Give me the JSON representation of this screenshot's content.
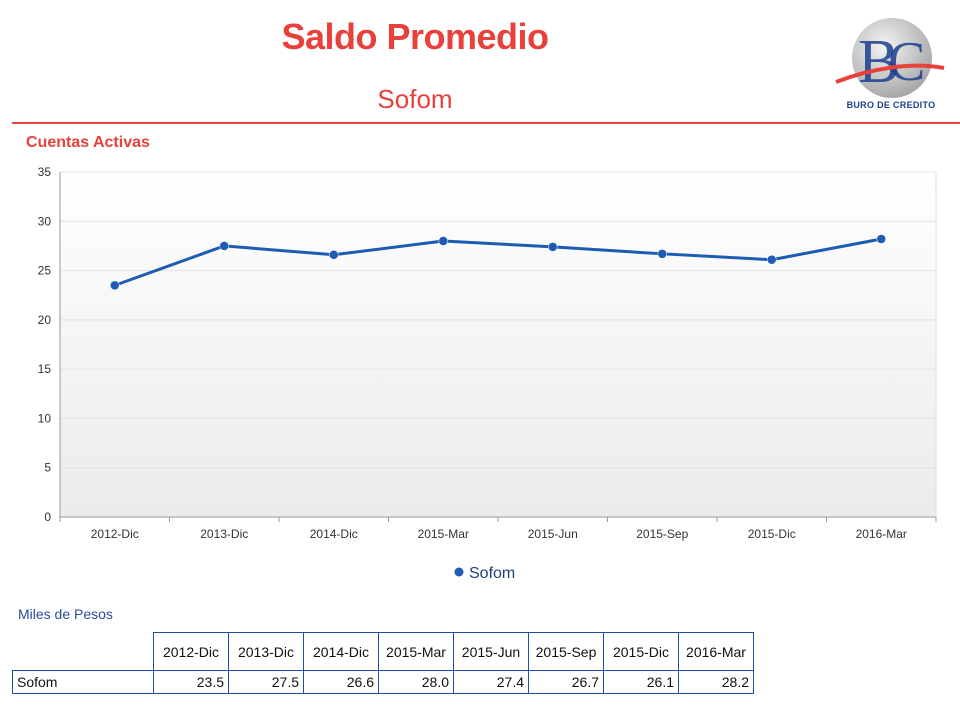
{
  "header": {
    "title": "Saldo Promedio",
    "subtitle": "Sofom",
    "logo_text": "BURO DE CREDITO"
  },
  "chart_section": {
    "title": "Cuentas Activas"
  },
  "chart_data": {
    "type": "line",
    "categories": [
      "2012-Dic",
      "2013-Dic",
      "2014-Dic",
      "2015-Mar",
      "2015-Jun",
      "2015-Sep",
      "2015-Dic",
      "2016-Mar"
    ],
    "series": [
      {
        "name": "Sofom",
        "values": [
          23.5,
          27.5,
          26.6,
          28.0,
          27.4,
          26.7,
          26.1,
          28.2
        ],
        "color": "#1e5cb3"
      }
    ],
    "yticks": [
      0,
      5,
      10,
      15,
      20,
      25,
      30,
      35
    ],
    "ylim": [
      0,
      35
    ],
    "grid": true,
    "legend_position": "bottom-center"
  },
  "table": {
    "caption": "Miles de Pesos",
    "columns": [
      "2012-Dic",
      "2013-Dic",
      "2014-Dic",
      "2015-Mar",
      "2015-Jun",
      "2015-Sep",
      "2015-Dic",
      "2016-Mar"
    ],
    "rows": [
      {
        "label": "Sofom",
        "values": [
          "23.5",
          "27.5",
          "26.6",
          "28.0",
          "27.4",
          "26.7",
          "26.1",
          "28.2"
        ]
      }
    ]
  },
  "colors": {
    "accent_red": "#e8413b",
    "line_blue": "#1e5cb3",
    "logo_blue": "#1b3f8f"
  }
}
